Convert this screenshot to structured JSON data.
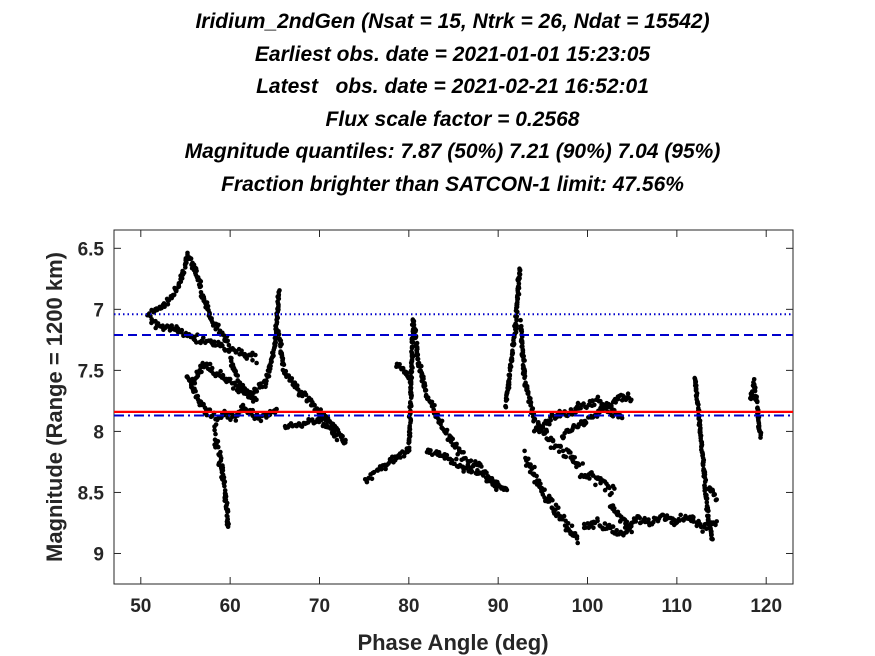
{
  "chart_data": {
    "type": "scatter",
    "title_lines": [
      "Iridium_2ndGen (Nsat = 15, Ntrk = 26, Ndat = 15542)",
      "Earliest obs. date = 2021-01-01 15:23:05",
      "Latest   obs. date = 2021-02-21 16:52:01",
      "Flux scale factor = 0.2568",
      "Magnitude quantiles: 7.87 (50%) 7.21 (90%) 7.04 (95%)",
      "Fraction brighter than SATCON-1 limit: 47.56%"
    ],
    "xlabel": "Phase Angle (deg)",
    "ylabel": "Magnitude (Range = 1200 km)",
    "xlim": [
      47,
      123
    ],
    "ylim": [
      6.35,
      9.25
    ],
    "y_reversed": true,
    "xticks": [
      50,
      60,
      70,
      80,
      90,
      100,
      110,
      120
    ],
    "xtick_labels": [
      "50",
      "60",
      "70",
      "80",
      "90",
      "100",
      "110",
      "120"
    ],
    "yticks": [
      6.5,
      7,
      7.5,
      8,
      8.5,
      9
    ],
    "ytick_labels": [
      "6.5",
      "7",
      "7.5",
      "8",
      "8.5",
      "9"
    ],
    "grid": false,
    "reference_lines": [
      {
        "y": 7.04,
        "color": "#0000cc",
        "style": "dotted"
      },
      {
        "y": 7.21,
        "color": "#0000cc",
        "style": "dashed"
      },
      {
        "y": 7.84,
        "color": "#ff0000",
        "style": "solid"
      },
      {
        "y": 7.87,
        "color": "#0000cc",
        "style": "dashdot"
      }
    ],
    "point_color": "#000000",
    "tracks": [
      {
        "x": [
          50.6,
          52,
          53.5,
          54.5,
          55.3,
          56.2,
          57,
          58,
          59,
          60
        ],
        "y": [
          7.05,
          7.0,
          6.9,
          6.75,
          6.55,
          6.7,
          6.9,
          7.1,
          7.2,
          7.3
        ],
        "spread": 0.05
      },
      {
        "x": [
          51,
          53,
          55,
          57,
          59,
          61,
          63
        ],
        "y": [
          7.1,
          7.15,
          7.2,
          7.25,
          7.3,
          7.35,
          7.4
        ],
        "spread": 0.05
      },
      {
        "x": [
          55,
          56,
          57,
          58,
          59,
          60,
          61,
          62,
          63
        ],
        "y": [
          7.55,
          7.6,
          7.45,
          7.5,
          7.55,
          7.6,
          7.65,
          7.7,
          7.75
        ],
        "spread": 0.06
      },
      {
        "x": [
          55.5,
          56.5,
          57.5,
          58.5,
          59.5,
          60.5,
          61.5,
          62.5,
          63.5,
          64.5,
          65.3
        ],
        "y": [
          7.6,
          7.75,
          7.85,
          7.9,
          7.85,
          7.9,
          7.8,
          7.85,
          7.9,
          7.85,
          7.8
        ],
        "spread": 0.05
      },
      {
        "x": [
          58.2,
          58.8,
          59.3,
          59.8
        ],
        "y": [
          8.0,
          8.2,
          8.4,
          8.8
        ],
        "spread": 0.12
      },
      {
        "x": [
          60,
          61,
          62,
          63,
          64,
          65,
          65.5
        ],
        "y": [
          7.4,
          7.6,
          7.7,
          7.65,
          7.6,
          7.3,
          6.85
        ],
        "spread": 0.05
      },
      {
        "x": [
          65.5,
          66,
          67,
          68,
          69,
          70,
          71,
          72,
          73
        ],
        "y": [
          7.2,
          7.5,
          7.6,
          7.7,
          7.75,
          7.85,
          7.9,
          8.0,
          8.1
        ],
        "spread": 0.05
      },
      {
        "x": [
          66,
          68,
          70,
          72
        ],
        "y": [
          7.95,
          7.95,
          7.9,
          8.05
        ],
        "spread": 0.04
      },
      {
        "x": [
          75,
          76,
          77,
          78,
          79,
          80,
          80.5
        ],
        "y": [
          8.4,
          8.35,
          8.3,
          8.25,
          8.2,
          8.15,
          7.1
        ],
        "spread": 0.05
      },
      {
        "x": [
          78.5,
          79.5,
          80.3
        ],
        "y": [
          7.45,
          7.5,
          7.6
        ],
        "spread": 0.04
      },
      {
        "x": [
          80.5,
          81,
          82,
          83,
          84,
          85,
          86,
          87,
          88,
          89,
          90
        ],
        "y": [
          7.1,
          7.4,
          7.7,
          7.85,
          8.0,
          8.1,
          8.2,
          8.25,
          8.3,
          8.4,
          8.45
        ],
        "spread": 0.06
      },
      {
        "x": [
          82,
          84,
          86,
          88,
          90,
          91
        ],
        "y": [
          8.15,
          8.2,
          8.3,
          8.35,
          8.45,
          8.5
        ],
        "spread": 0.05
      },
      {
        "x": [
          90.8,
          91.5,
          92,
          92.4
        ],
        "y": [
          7.8,
          7.4,
          7.1,
          6.65
        ],
        "spread": 0.05
      },
      {
        "x": [
          92.5,
          93,
          94,
          95,
          96,
          97,
          98,
          99,
          100,
          101,
          102,
          103
        ],
        "y": [
          7.1,
          7.6,
          7.9,
          8.0,
          8.1,
          8.15,
          8.2,
          8.3,
          8.35,
          8.4,
          8.45,
          8.5
        ],
        "spread": 0.08
      },
      {
        "x": [
          93,
          94,
          95,
          96,
          97,
          98,
          99
        ],
        "y": [
          8.2,
          8.35,
          8.5,
          8.6,
          8.7,
          8.8,
          8.9
        ],
        "spread": 0.08
      },
      {
        "x": [
          94,
          95,
          96,
          97,
          98,
          99,
          100,
          101,
          102,
          103,
          104
        ],
        "y": [
          8.0,
          7.95,
          7.9,
          7.85,
          7.85,
          7.8,
          7.8,
          7.75,
          7.8,
          7.85,
          7.9
        ],
        "spread": 0.06
      },
      {
        "x": [
          97,
          98,
          99,
          100,
          101,
          102,
          103,
          104,
          105
        ],
        "y": [
          8.05,
          8.0,
          7.95,
          7.9,
          7.85,
          7.8,
          7.75,
          7.7,
          7.75
        ],
        "spread": 0.05
      },
      {
        "x": [
          99.5,
          101,
          102.5,
          104,
          105.5,
          107,
          108.5,
          110,
          111.5,
          113,
          114.5
        ],
        "y": [
          8.8,
          8.75,
          8.8,
          8.85,
          8.7,
          8.75,
          8.7,
          8.75,
          8.7,
          8.8,
          8.75
        ],
        "spread": 0.06
      },
      {
        "x": [
          102.5,
          103.5,
          105
        ],
        "y": [
          8.6,
          8.7,
          8.8
        ],
        "spread": 0.05
      },
      {
        "x": [
          112,
          112.5,
          113,
          113.5,
          114
        ],
        "y": [
          7.55,
          7.9,
          8.3,
          8.7,
          8.9
        ],
        "spread": 0.05
      },
      {
        "x": [
          113.5,
          114,
          114.5
        ],
        "y": [
          8.45,
          8.5,
          8.55
        ],
        "spread": 0.04
      },
      {
        "x": [
          118.2,
          118.6,
          119,
          119.4
        ],
        "y": [
          7.75,
          7.6,
          7.8,
          8.05
        ],
        "spread": 0.06
      }
    ]
  }
}
